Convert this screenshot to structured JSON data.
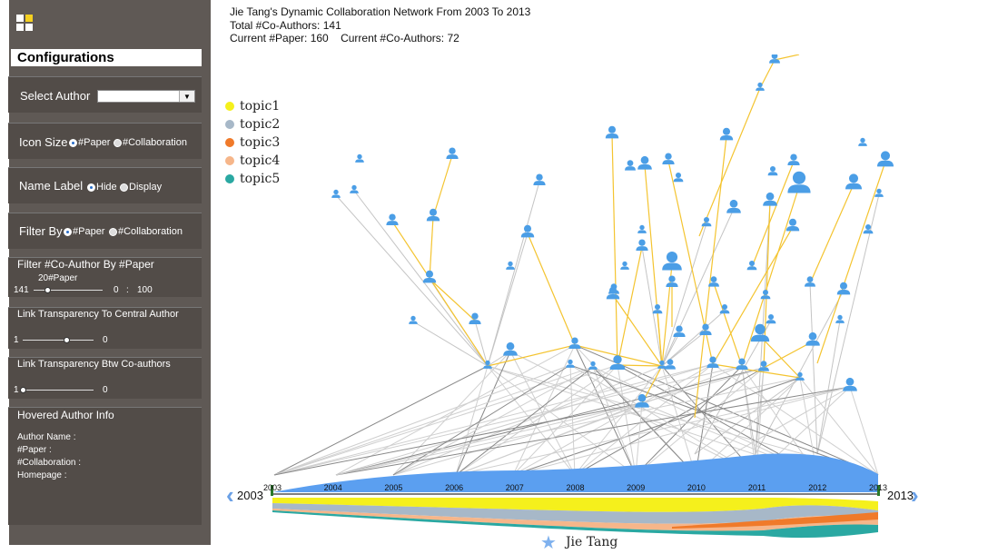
{
  "header": {
    "title": "Jie Tang's Dynamic Collaboration Network From 2003 To 2013",
    "total": "Total #Co-Authors: 141",
    "current_paper": "Current #Paper: 160",
    "current_coauthors": "Current #Co-Authors: 72"
  },
  "sidebar": {
    "title": "Configurations",
    "select_author": {
      "label": "Select Author",
      "value": ""
    },
    "icon_size": {
      "label": "Icon Size",
      "opt1": "#Paper",
      "opt2": "#Collaboration",
      "selected": "#Paper"
    },
    "name_label": {
      "label": "Name Label",
      "opt1": "Hide",
      "opt2": "Display",
      "selected": "Hide"
    },
    "filter_by": {
      "label": "Filter By",
      "opt1": "#Paper",
      "opt2": "#Collaboration",
      "selected": "#Paper"
    },
    "filter_coauthor": {
      "label": "Filter #Co-Author By #Paper",
      "value_label": "20#Paper",
      "left": "141",
      "mid": "0",
      "sep": ":",
      "right": "100",
      "fraction": 0.2
    },
    "link_central": {
      "label": "Link Transparency To Central Author",
      "left": "1",
      "right": "0",
      "fraction": 0.62
    },
    "link_btw": {
      "label": "Link Transparency Btw Co-authors",
      "left": "1",
      "right": "0",
      "fraction": 0.0
    },
    "hovered": {
      "title": "Hovered Author Info",
      "name": "Author Name :",
      "paper": "#Paper :",
      "collab": "#Collaboration :",
      "homepage": "Homepage :"
    }
  },
  "legend": [
    {
      "label": "topic1",
      "color": "#f5f01c"
    },
    {
      "label": "topic2",
      "color": "#a7b8c8"
    },
    {
      "label": "topic3",
      "color": "#f07a2a"
    },
    {
      "label": "topic4",
      "color": "#f6b68a"
    },
    {
      "label": "topic5",
      "color": "#2aa8a2"
    }
  ],
  "timeline": {
    "start": "2003",
    "end": "2013",
    "years": [
      "2003",
      "2004",
      "2005",
      "2006",
      "2007",
      "2008",
      "2009",
      "2010",
      "2011",
      "2012",
      "2013"
    ],
    "central_author": "Jie Tang"
  },
  "colors": {
    "node": "#4b9ee6",
    "topic_link": "#f4c430",
    "gray_link": "#bbbbbb",
    "area": "#5b9ff0"
  }
}
